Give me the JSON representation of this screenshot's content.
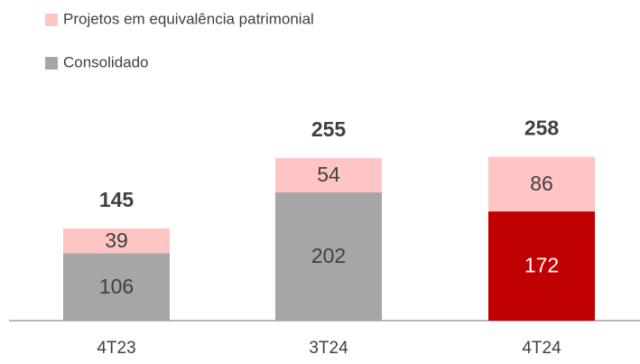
{
  "chart_data": {
    "type": "stacked-bar",
    "categories": [
      "4T23",
      "3T24",
      "4T24"
    ],
    "series": [
      {
        "name": "Consolidado",
        "color": "#a6a6a6",
        "colors": [
          "#a6a6a6",
          "#a6a6a6",
          "#c00000"
        ],
        "values": [
          106,
          202,
          172
        ]
      },
      {
        "name": "Projetos em equivalência patrimonial",
        "color": "#ffc5c5",
        "values": [
          39,
          54,
          86
        ]
      }
    ],
    "totals": [
      145,
      255,
      258
    ],
    "legend": "top-left"
  }
}
